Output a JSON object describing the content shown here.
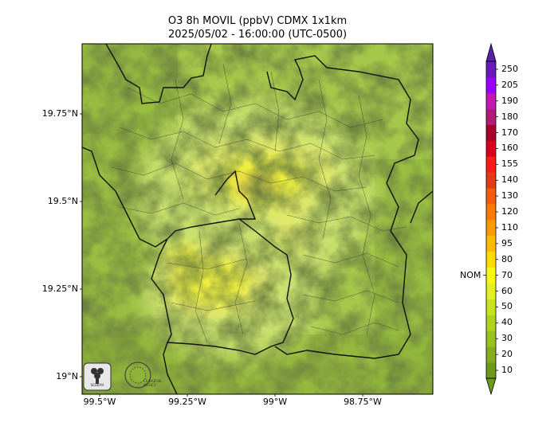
{
  "title": {
    "line1": "O3 8h MOVIL (ppbV) CDMX 1x1km",
    "line2": "2025/05/02 - 16:00:00 (UTC-0500)"
  },
  "axes": {
    "y_ticks": [
      {
        "label": "19.75°N",
        "lat": 19.75
      },
      {
        "label": "19.5°N",
        "lat": 19.5
      },
      {
        "label": "19.25°N",
        "lat": 19.25
      },
      {
        "label": "19°N",
        "lat": 19.0
      }
    ],
    "x_ticks": [
      {
        "label": "99.5°W",
        "lon": -99.5
      },
      {
        "label": "99.25°W",
        "lon": -99.25
      },
      {
        "label": "99°W",
        "lon": -99.0
      },
      {
        "label": "98.75°W",
        "lon": -98.75
      }
    ],
    "lat_range": [
      18.95,
      19.95
    ],
    "lon_range": [
      -99.55,
      -98.55
    ]
  },
  "colorbar": {
    "levels": [
      "10",
      "20",
      "30",
      "40",
      "50",
      "60",
      "70",
      "80",
      "95",
      "110",
      "120",
      "130",
      "140",
      "155",
      "160",
      "170",
      "180",
      "190",
      "205",
      "250"
    ],
    "colors": [
      "#6e9a1c",
      "#84ad20",
      "#98c21e",
      "#afd41e",
      "#c8e21e",
      "#e2ef20",
      "#f7f716",
      "#ffdb00",
      "#ffbb00",
      "#ff9a00",
      "#ff7a00",
      "#f45c0e",
      "#e43a16",
      "#ff1a1a",
      "#d8001a",
      "#a8002a",
      "#b01a7a",
      "#c21ab0",
      "#9a00ff",
      "#6a1ab8"
    ],
    "extend_low": "#6e9a1c",
    "extend_high": "#5a20a8",
    "marker": {
      "label": "NOM",
      "value": "70"
    }
  },
  "logos": {
    "logo1_text": "SEDEMA",
    "logo2_text": "CIUDAD DE MÉXICO"
  }
}
